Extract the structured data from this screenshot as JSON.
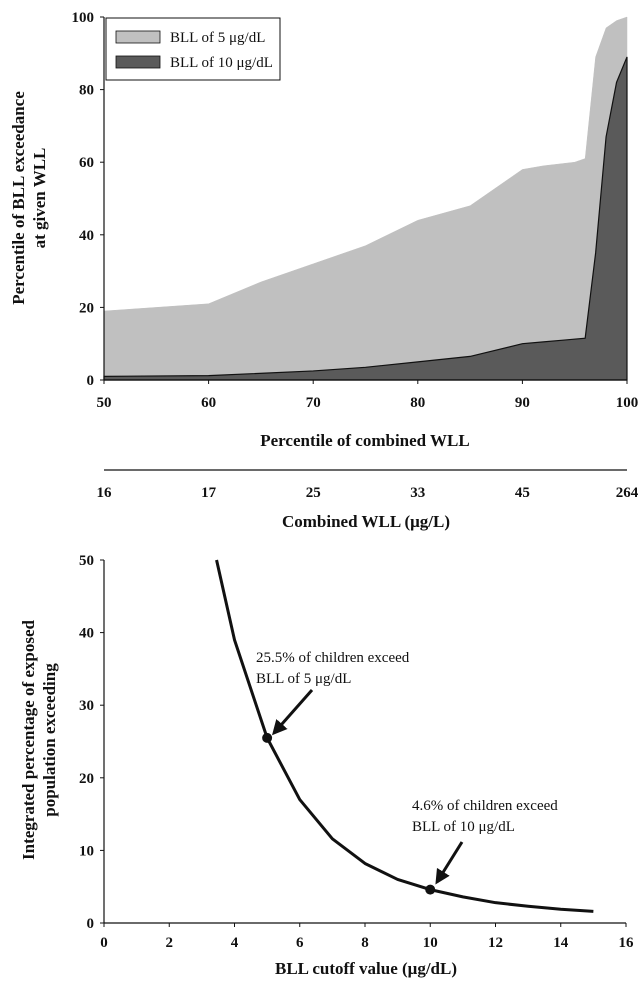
{
  "chart_data": [
    {
      "type": "area",
      "x_label": "Percentile of combined WLL",
      "y_label_lines": [
        "Percentile of BLL exceedance",
        "at given WLL"
      ],
      "xlim": [
        50,
        100
      ],
      "ylim": [
        0,
        100
      ],
      "x_ticks": [
        "50",
        "60",
        "70",
        "80",
        "90",
        "100"
      ],
      "y_ticks": [
        "0",
        "20",
        "40",
        "60",
        "80",
        "100"
      ],
      "secondary_x_label": "Combined WLL (μg/L)",
      "secondary_x_ticks": [
        "16",
        "17",
        "25",
        "33",
        "45",
        "264"
      ],
      "legend_position": "top-left",
      "series": [
        {
          "name": "BLL of 5 μg/dL",
          "color": "#c0c0c0",
          "x": [
            50,
            60,
            65,
            70,
            75,
            80,
            85,
            90,
            92,
            95,
            96,
            97,
            98,
            99,
            100
          ],
          "y": [
            19,
            21,
            27,
            32,
            37,
            44,
            48,
            58,
            59,
            60,
            61,
            89,
            97,
            99,
            100
          ]
        },
        {
          "name": "BLL of 10 μg/dL",
          "color": "#5a5a5a",
          "x": [
            50,
            60,
            70,
            75,
            80,
            85,
            90,
            92,
            94,
            96,
            97,
            98,
            99,
            100
          ],
          "y": [
            1,
            1.2,
            2.5,
            3.5,
            5,
            6.5,
            10,
            10.5,
            11,
            11.5,
            35,
            67,
            82,
            89
          ]
        }
      ]
    },
    {
      "type": "line",
      "x_label": "BLL cutoff value (μg/dL)",
      "y_label_lines": [
        "Integrated percentage of exposed",
        "population exceeding"
      ],
      "xlim": [
        0,
        16
      ],
      "ylim": [
        0,
        50
      ],
      "x_ticks": [
        "0",
        "2",
        "4",
        "6",
        "8",
        "10",
        "12",
        "14",
        "16"
      ],
      "y_ticks": [
        "0",
        "10",
        "20",
        "30",
        "40",
        "50"
      ],
      "series": [
        {
          "x": [
            3.45,
            4,
            5,
            6,
            7,
            8,
            9,
            10,
            11,
            12,
            13,
            14,
            15
          ],
          "y": [
            50,
            39,
            25.5,
            17,
            11.6,
            8.2,
            6,
            4.6,
            3.6,
            2.8,
            2.3,
            1.9,
            1.6
          ]
        }
      ],
      "highlight_points": [
        {
          "x": 5,
          "y": 25.5,
          "label_lines": [
            "25.5% of children exceed",
            "BLL of 5 μg/dL"
          ]
        },
        {
          "x": 10,
          "y": 4.6,
          "label_lines": [
            "4.6% of children exceed",
            "BLL of 10 μg/dL"
          ]
        }
      ]
    }
  ]
}
